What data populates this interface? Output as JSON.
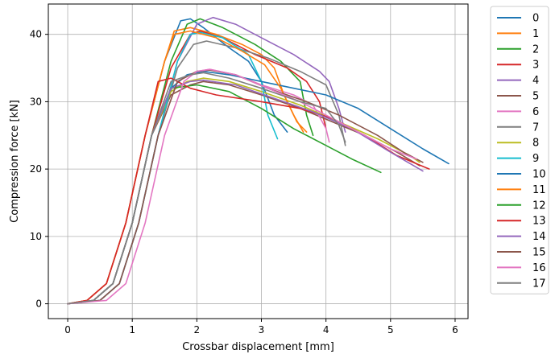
{
  "chart_data": {
    "type": "line",
    "xlabel": "Crossbar displacement [mm]",
    "ylabel": "Compression force [kN]",
    "xlim": [
      -0.3,
      6.2
    ],
    "ylim": [
      -2.2,
      44.5
    ],
    "xticks": [
      0,
      1,
      2,
      3,
      4,
      5,
      6
    ],
    "yticks": [
      0,
      10,
      20,
      30,
      40
    ],
    "grid": true,
    "legend": "outside-right",
    "series": [
      {
        "name": "0",
        "color": "#1f77b4",
        "x": [
          0,
          0.3,
          0.6,
          0.9,
          1.2,
          1.5,
          1.75,
          1.9,
          2.1,
          2.5,
          2.8,
          3.0,
          3.2,
          3.4
        ],
        "y": [
          0,
          0.5,
          3,
          12,
          25,
          36,
          42,
          42.3,
          41,
          38,
          36,
          33,
          28,
          25.5
        ]
      },
      {
        "name": "1",
        "color": "#ff7f0e",
        "x": [
          0,
          0.3,
          0.6,
          0.9,
          1.2,
          1.5,
          1.65,
          1.9,
          2.3,
          2.7,
          3.0,
          3.2,
          3.35,
          3.55,
          3.7
        ],
        "y": [
          0,
          0.5,
          3,
          12,
          25,
          36,
          40.5,
          41,
          40,
          38.5,
          37,
          35,
          31,
          27,
          25.5
        ]
      },
      {
        "name": "2",
        "color": "#2ca02c",
        "x": [
          0,
          0.4,
          0.7,
          1.0,
          1.3,
          1.6,
          1.85,
          2.05,
          2.4,
          2.9,
          3.3,
          3.6,
          3.7,
          3.8
        ],
        "y": [
          0,
          0.5,
          3,
          12,
          25,
          36,
          41.5,
          42.3,
          41,
          38.5,
          36,
          33,
          28,
          25
        ]
      },
      {
        "name": "3",
        "color": "#d62728",
        "x": [
          0,
          0.4,
          0.7,
          1.0,
          1.3,
          1.6,
          1.9,
          2.05,
          2.4,
          2.9,
          3.4,
          3.7,
          3.9,
          4.0
        ],
        "y": [
          0,
          0.5,
          3,
          12,
          25,
          35,
          40,
          40.5,
          39.5,
          37,
          35,
          33,
          30,
          26
        ]
      },
      {
        "name": "4",
        "color": "#9467bd",
        "x": [
          0,
          0.5,
          0.8,
          1.1,
          1.4,
          1.7,
          2.0,
          2.25,
          2.6,
          3.0,
          3.5,
          3.9,
          4.05,
          4.2,
          4.3
        ],
        "y": [
          0,
          0.5,
          3,
          12,
          25,
          36,
          41.5,
          42.5,
          41.5,
          39.5,
          37,
          34.5,
          33,
          29,
          25.5
        ]
      },
      {
        "name": "5",
        "color": "#8c564b",
        "x": [
          0,
          0.4,
          0.7,
          1.0,
          1.3,
          1.6,
          1.9,
          2.1,
          2.5,
          3.0,
          3.6,
          4.1,
          4.6,
          5.1,
          5.45
        ],
        "y": [
          0,
          0.5,
          3,
          12,
          25,
          31,
          32.5,
          33,
          32.5,
          31,
          29,
          27,
          25,
          22.5,
          20.5
        ]
      },
      {
        "name": "6",
        "color": "#e377c2",
        "x": [
          0,
          0.5,
          0.8,
          1.1,
          1.4,
          1.7,
          2.0,
          2.2,
          2.6,
          3.0,
          3.5,
          3.8,
          4.0,
          4.05
        ],
        "y": [
          0,
          0.5,
          3,
          12,
          25,
          33,
          34.5,
          34.8,
          34,
          32.5,
          31,
          29.5,
          26,
          24
        ]
      },
      {
        "name": "7",
        "color": "#7f7f7f",
        "x": [
          0,
          0.5,
          0.8,
          1.1,
          1.4,
          1.7,
          1.95,
          2.15,
          2.6,
          3.1,
          3.6,
          4.0,
          4.2,
          4.3
        ],
        "y": [
          0,
          0.5,
          3,
          12,
          25,
          35,
          38.5,
          39,
          38,
          36.5,
          34.5,
          32.5,
          28,
          23.5
        ]
      },
      {
        "name": "8",
        "color": "#bcbd22",
        "x": [
          0,
          0.4,
          0.7,
          1.0,
          1.3,
          1.6,
          1.85,
          2.1,
          2.5,
          3.0,
          3.6,
          4.2,
          4.8,
          5.3,
          5.45
        ],
        "y": [
          0,
          0.5,
          3,
          12,
          25,
          31.5,
          33,
          33.5,
          33,
          31.5,
          29.5,
          27,
          24.5,
          22,
          21
        ]
      },
      {
        "name": "9",
        "color": "#17becf",
        "x": [
          0,
          0.5,
          0.8,
          1.1,
          1.4,
          1.7,
          1.9,
          2.05,
          2.4,
          2.8,
          3.0,
          3.1,
          3.25
        ],
        "y": [
          0,
          0.5,
          3,
          12,
          25,
          36,
          40,
          40.3,
          39.5,
          37,
          33,
          28,
          24.5
        ]
      },
      {
        "name": "10",
        "color": "#1f77b4",
        "x": [
          0,
          0.4,
          0.7,
          1.0,
          1.3,
          1.6,
          1.85,
          2.1,
          2.5,
          3.0,
          3.5,
          4.0,
          4.5,
          5.0,
          5.5,
          5.9
        ],
        "y": [
          0,
          0.5,
          3,
          12,
          25,
          32,
          34,
          34.5,
          34,
          33,
          32,
          31,
          29,
          26,
          23,
          20.8
        ]
      },
      {
        "name": "11",
        "color": "#ff7f0e",
        "x": [
          0,
          0.3,
          0.6,
          0.9,
          1.2,
          1.5,
          1.65,
          1.9,
          2.3,
          2.7,
          3.05,
          3.3,
          3.5,
          3.65
        ],
        "y": [
          0,
          0.5,
          3,
          12,
          25,
          36,
          40,
          40.5,
          39.5,
          37.5,
          35.5,
          32,
          28,
          25.5
        ]
      },
      {
        "name": "12",
        "color": "#2ca02c",
        "x": [
          0,
          0.4,
          0.7,
          1.0,
          1.3,
          1.6,
          2.0,
          2.5,
          3.0,
          3.5,
          4.0,
          4.4,
          4.85
        ],
        "y": [
          0,
          0.5,
          3,
          12,
          25,
          32,
          32.5,
          31.5,
          29,
          26,
          23.5,
          21.5,
          19.5
        ]
      },
      {
        "name": "13",
        "color": "#d62728",
        "x": [
          0,
          0.3,
          0.6,
          0.9,
          1.2,
          1.4,
          1.6,
          1.9,
          2.3,
          3.0,
          3.6,
          4.1,
          4.6,
          5.1,
          5.6
        ],
        "y": [
          0,
          0.5,
          3,
          12,
          25,
          33,
          33.5,
          32,
          31,
          30,
          29,
          27.5,
          25,
          22,
          20
        ]
      },
      {
        "name": "14",
        "color": "#9467bd",
        "x": [
          0,
          0.4,
          0.7,
          1.0,
          1.3,
          1.6,
          1.9,
          2.1,
          2.6,
          3.2,
          3.8,
          4.4,
          5.0,
          5.5
        ],
        "y": [
          0,
          0.5,
          3,
          12,
          25,
          32,
          33,
          33.2,
          32.5,
          30.5,
          28.5,
          26,
          22.5,
          19.7
        ]
      },
      {
        "name": "15",
        "color": "#8c564b",
        "x": [
          0,
          0.5,
          0.8,
          1.1,
          1.4,
          1.7,
          2.0,
          2.2,
          2.6,
          3.1,
          3.7,
          4.2,
          4.8,
          5.2,
          5.5
        ],
        "y": [
          0,
          0.5,
          3,
          12,
          25,
          33,
          34.5,
          34.7,
          34,
          32,
          30,
          28,
          25,
          22.5,
          21
        ]
      },
      {
        "name": "16",
        "color": "#e377c2",
        "x": [
          0,
          0.6,
          0.9,
          1.2,
          1.5,
          1.8,
          2.0,
          2.2,
          2.6,
          3.1,
          3.6,
          4.0,
          4.5,
          5.0,
          5.4
        ],
        "y": [
          0,
          0.5,
          3,
          12,
          25,
          33,
          34.5,
          34.8,
          34,
          32,
          30,
          28,
          25.5,
          23,
          21.5
        ]
      },
      {
        "name": "17",
        "color": "#7f7f7f",
        "x": [
          0,
          0.4,
          0.7,
          1.0,
          1.3,
          1.6,
          1.9,
          2.1,
          2.5,
          3.0,
          3.6,
          4.0,
          4.2,
          4.3
        ],
        "y": [
          0,
          0.5,
          3,
          12,
          25,
          33,
          34,
          34.3,
          33.5,
          32,
          30,
          29,
          26.5,
          24
        ]
      }
    ]
  }
}
